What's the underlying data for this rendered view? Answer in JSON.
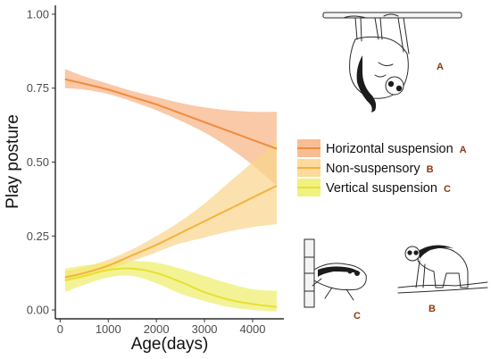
{
  "chart_data": {
    "type": "line",
    "xlabel": "Age(days)",
    "ylabel": "Play posture",
    "xlim": [
      -100,
      4650
    ],
    "ylim": [
      -0.03,
      1.03
    ],
    "xticks": [
      0,
      1000,
      2000,
      3000,
      4000
    ],
    "xtick_labels": [
      "0",
      "1000",
      "2000",
      "3000",
      "4000"
    ],
    "yticks": [
      0,
      0.25,
      0.5,
      0.75,
      1.0
    ],
    "ytick_labels": [
      "0.00",
      "0.25",
      "0.50",
      "0.75",
      "1.00"
    ],
    "grid": false,
    "legend_position": "right",
    "x": [
      100,
      500,
      1000,
      1500,
      2000,
      2500,
      3000,
      3500,
      4000,
      4500
    ],
    "series": [
      {
        "name": "Horizontal suspension",
        "letter": "A",
        "color": "#f08c3c",
        "band_color": "#f7b283",
        "values": [
          0.78,
          0.765,
          0.745,
          0.72,
          0.695,
          0.665,
          0.635,
          0.605,
          0.575,
          0.545
        ],
        "lower": [
          0.75,
          0.745,
          0.73,
          0.705,
          0.675,
          0.64,
          0.6,
          0.55,
          0.49,
          0.42
        ],
        "upper": [
          0.815,
          0.79,
          0.765,
          0.74,
          0.72,
          0.7,
          0.685,
          0.675,
          0.67,
          0.67
        ]
      },
      {
        "name": "Non-suspensory",
        "letter": "B",
        "color": "#f5b23c",
        "band_color": "#fad48a",
        "values": [
          0.11,
          0.125,
          0.15,
          0.185,
          0.22,
          0.26,
          0.3,
          0.34,
          0.38,
          0.42
        ],
        "lower": [
          0.095,
          0.11,
          0.135,
          0.165,
          0.195,
          0.225,
          0.245,
          0.265,
          0.28,
          0.29
        ],
        "upper": [
          0.13,
          0.145,
          0.17,
          0.205,
          0.25,
          0.3,
          0.36,
          0.43,
          0.5,
          0.575
        ]
      },
      {
        "name": "Vertical suspension",
        "letter": "C",
        "color": "#e8e030",
        "band_color": "#eeee6a",
        "values": [
          0.1,
          0.115,
          0.135,
          0.14,
          0.125,
          0.095,
          0.06,
          0.035,
          0.02,
          0.01
        ],
        "lower": [
          0.06,
          0.085,
          0.11,
          0.115,
          0.09,
          0.055,
          0.03,
          0.01,
          0.0,
          -0.005
        ],
        "upper": [
          0.14,
          0.15,
          0.16,
          0.165,
          0.16,
          0.14,
          0.115,
          0.09,
          0.07,
          0.065
        ]
      }
    ]
  },
  "drawings": [
    {
      "letter": "A"
    },
    {
      "letter": "B"
    },
    {
      "letter": "C"
    }
  ]
}
